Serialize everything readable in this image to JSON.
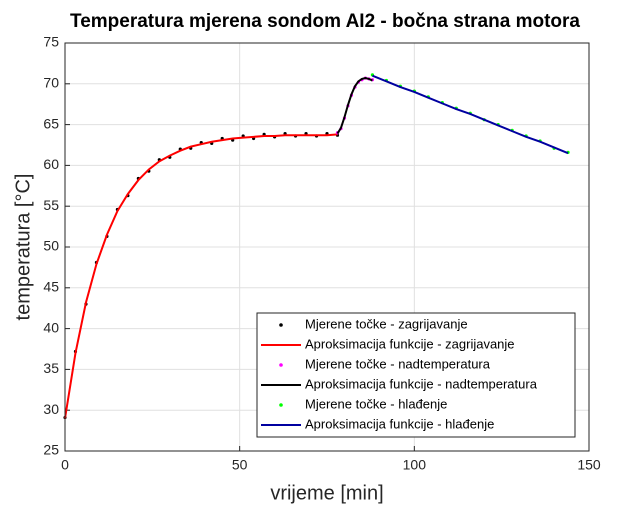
{
  "chart_data": {
    "type": "line",
    "title": "Temperatura mjerena sondom AI2 - bočna strana motora",
    "x_label": "vrijeme [min]",
    "y_label": "temperatura [°C]",
    "xlim": [
      0,
      150
    ],
    "xticks": [
      0,
      50,
      100,
      150
    ],
    "ylim": [
      25,
      75
    ],
    "yticks": [
      25,
      30,
      35,
      40,
      45,
      50,
      55,
      60,
      65,
      70,
      75
    ],
    "grid": true,
    "legend": "lower right",
    "series": [
      {
        "name": "Mjerene točke - zagrijavanje",
        "color": "#000000",
        "style": "markers",
        "x": [
          0,
          3,
          6,
          9,
          12,
          15,
          18,
          21,
          24,
          27,
          30,
          33,
          36,
          39,
          42,
          45,
          48,
          51,
          54,
          57,
          60,
          63,
          66,
          69,
          72,
          75,
          78
        ],
        "values": [
          29.1,
          37.2,
          43.0,
          48.1,
          51.3,
          54.6,
          56.3,
          58.4,
          59.3,
          60.7,
          61.0,
          62.0,
          62.1,
          62.8,
          62.7,
          63.3,
          63.1,
          63.6,
          63.3,
          63.8,
          63.5,
          63.9,
          63.6,
          63.9,
          63.6,
          63.9,
          63.7
        ]
      },
      {
        "name": "Aproksimacija funkcije - zagrijavanje",
        "color": "#ff0000",
        "style": "line",
        "x": [
          0,
          3,
          6,
          9,
          12,
          15,
          18,
          21,
          24,
          27,
          30,
          33,
          36,
          39,
          42,
          45,
          48,
          51,
          54,
          57,
          60,
          63,
          66,
          69,
          72,
          75,
          78
        ],
        "values": [
          29.0,
          37.0,
          43.2,
          47.9,
          51.5,
          54.4,
          56.5,
          58.2,
          59.5,
          60.5,
          61.2,
          61.8,
          62.3,
          62.6,
          62.9,
          63.1,
          63.3,
          63.4,
          63.5,
          63.6,
          63.6,
          63.7,
          63.7,
          63.7,
          63.7,
          63.7,
          63.8
        ]
      },
      {
        "name": "Mjerene točke - nadtemperatura",
        "color": "#ff00ff",
        "style": "markers",
        "x": [
          78,
          79,
          80,
          81,
          82,
          83,
          84,
          85,
          86,
          87,
          88
        ],
        "values": [
          64.0,
          64.5,
          65.8,
          67.3,
          68.6,
          69.6,
          70.2,
          70.5,
          70.7,
          70.6,
          70.5
        ]
      },
      {
        "name": "Aproksimacija funkcije - nadtemperatura",
        "color": "#000000",
        "style": "line",
        "x": [
          78,
          79,
          80,
          81,
          82,
          83,
          84,
          85,
          86,
          87,
          88
        ],
        "values": [
          63.9,
          64.6,
          65.9,
          67.4,
          68.7,
          69.7,
          70.3,
          70.6,
          70.7,
          70.6,
          70.4
        ]
      },
      {
        "name": "Mjerene točke - hlađenje",
        "color": "#00ff00",
        "style": "markers",
        "x": [
          88,
          92,
          96,
          100,
          104,
          108,
          112,
          116,
          120,
          124,
          128,
          132,
          136,
          140,
          144
        ],
        "values": [
          71.1,
          70.4,
          69.7,
          69.1,
          68.4,
          67.7,
          67.0,
          66.4,
          65.6,
          65.0,
          64.3,
          63.6,
          63.0,
          62.1,
          61.6
        ]
      },
      {
        "name": "Aproksimacija funkcije - hlađenje",
        "color": "#0000a0",
        "style": "line",
        "x": [
          88,
          92,
          96,
          100,
          104,
          108,
          112,
          116,
          120,
          124,
          128,
          132,
          136,
          140,
          144
        ],
        "values": [
          71.0,
          70.3,
          69.6,
          69.0,
          68.3,
          67.6,
          66.9,
          66.3,
          65.6,
          64.9,
          64.2,
          63.5,
          62.9,
          62.2,
          61.5
        ]
      }
    ]
  }
}
